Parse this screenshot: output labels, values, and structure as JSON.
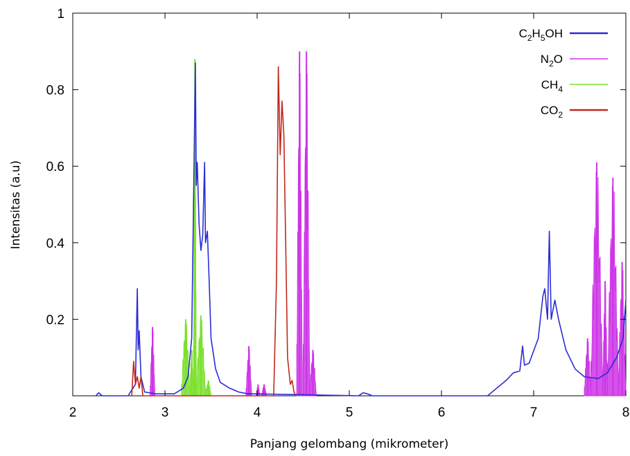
{
  "chart_data": {
    "type": "line",
    "xlabel": "Panjang gelombang (mikrometer)",
    "ylabel": "Intensitas (a.u)",
    "xlim": [
      2,
      8
    ],
    "ylim": [
      0,
      1
    ],
    "x_ticks": [
      "2",
      "3",
      "4",
      "5",
      "6",
      "7",
      "8"
    ],
    "y_ticks": [
      "0.2",
      "0.4",
      "0.6",
      "0.8",
      "1"
    ],
    "legend_position": "top-right",
    "grid": false,
    "series": [
      {
        "name": "C2H5OH",
        "legend": {
          "parts": [
            [
              "C",
              ""
            ],
            [
              "2",
              "sub"
            ],
            [
              "H",
              ""
            ],
            [
              "5",
              "sub"
            ],
            [
              "OH",
              ""
            ]
          ]
        },
        "color": "#2b2bd6",
        "style": "line",
        "points": [
          [
            2.25,
            0
          ],
          [
            2.28,
            0.008
          ],
          [
            2.32,
            0
          ],
          [
            2.6,
            0
          ],
          [
            2.68,
            0.03
          ],
          [
            2.7,
            0.28
          ],
          [
            2.71,
            0.12
          ],
          [
            2.72,
            0.17
          ],
          [
            2.74,
            0.05
          ],
          [
            2.78,
            0.01
          ],
          [
            2.9,
            0.005
          ],
          [
            3.1,
            0.005
          ],
          [
            3.2,
            0.02
          ],
          [
            3.25,
            0.05
          ],
          [
            3.29,
            0.15
          ],
          [
            3.31,
            0.5
          ],
          [
            3.33,
            0.87
          ],
          [
            3.34,
            0.55
          ],
          [
            3.35,
            0.61
          ],
          [
            3.37,
            0.45
          ],
          [
            3.39,
            0.38
          ],
          [
            3.41,
            0.42
          ],
          [
            3.43,
            0.61
          ],
          [
            3.44,
            0.4
          ],
          [
            3.46,
            0.43
          ],
          [
            3.48,
            0.3
          ],
          [
            3.5,
            0.15
          ],
          [
            3.55,
            0.07
          ],
          [
            3.6,
            0.035
          ],
          [
            3.7,
            0.02
          ],
          [
            3.8,
            0.01
          ],
          [
            3.9,
            0.005
          ],
          [
            4.0,
            0.005
          ],
          [
            5.1,
            0
          ],
          [
            5.15,
            0.008
          ],
          [
            5.2,
            0.005
          ],
          [
            5.25,
            0
          ],
          [
            6.5,
            0
          ],
          [
            6.6,
            0.02
          ],
          [
            6.7,
            0.04
          ],
          [
            6.78,
            0.06
          ],
          [
            6.85,
            0.065
          ],
          [
            6.88,
            0.13
          ],
          [
            6.9,
            0.08
          ],
          [
            6.95,
            0.085
          ],
          [
            7.05,
            0.15
          ],
          [
            7.1,
            0.26
          ],
          [
            7.12,
            0.28
          ],
          [
            7.15,
            0.2
          ],
          [
            7.17,
            0.43
          ],
          [
            7.19,
            0.2
          ],
          [
            7.23,
            0.25
          ],
          [
            7.27,
            0.2
          ],
          [
            7.35,
            0.12
          ],
          [
            7.45,
            0.07
          ],
          [
            7.55,
            0.05
          ],
          [
            7.7,
            0.045
          ],
          [
            7.8,
            0.06
          ],
          [
            7.9,
            0.1
          ],
          [
            7.97,
            0.15
          ],
          [
            8.0,
            0.25
          ]
        ]
      },
      {
        "name": "N2O",
        "legend": {
          "parts": [
            [
              "N",
              ""
            ],
            [
              "2",
              "sub"
            ],
            [
              "O",
              ""
            ]
          ]
        },
        "color": "#cc33e6",
        "style": "filled",
        "bands": [
          [
            2.84,
            2.89,
            0.18
          ],
          [
            3.88,
            3.94,
            0.13
          ],
          [
            3.99,
            4.03,
            0.03
          ],
          [
            4.05,
            4.1,
            0.03
          ],
          [
            4.43,
            4.49,
            0.9
          ],
          [
            4.5,
            4.57,
            0.9
          ],
          [
            4.57,
            4.64,
            0.12
          ],
          [
            7.55,
            7.62,
            0.15
          ],
          [
            7.62,
            7.75,
            0.61
          ],
          [
            7.75,
            7.8,
            0.3
          ],
          [
            7.8,
            7.92,
            0.57
          ],
          [
            7.92,
            8.0,
            0.35
          ]
        ]
      },
      {
        "name": "CH4",
        "legend": {
          "parts": [
            [
              "CH",
              ""
            ],
            [
              "4",
              "sub"
            ]
          ]
        },
        "color": "#7be02b",
        "style": "filled",
        "bands": [
          [
            3.18,
            3.27,
            0.2
          ],
          [
            3.27,
            3.31,
            0.12
          ],
          [
            3.31,
            3.34,
            0.88
          ],
          [
            3.34,
            3.44,
            0.21
          ],
          [
            3.44,
            3.5,
            0.04
          ]
        ]
      },
      {
        "name": "CO2",
        "legend": {
          "parts": [
            [
              "CO",
              ""
            ],
            [
              "2",
              "sub"
            ]
          ]
        },
        "color": "#c0281c",
        "style": "line",
        "points": [
          [
            2.64,
            0
          ],
          [
            2.66,
            0.09
          ],
          [
            2.68,
            0.03
          ],
          [
            2.7,
            0.05
          ],
          [
            2.72,
            0.02
          ],
          [
            2.74,
            0.05
          ],
          [
            2.76,
            0
          ],
          [
            4.18,
            0
          ],
          [
            4.21,
            0.3
          ],
          [
            4.23,
            0.86
          ],
          [
            4.25,
            0.63
          ],
          [
            4.27,
            0.77
          ],
          [
            4.29,
            0.68
          ],
          [
            4.31,
            0.4
          ],
          [
            4.33,
            0.1
          ],
          [
            4.36,
            0.03
          ],
          [
            4.38,
            0.04
          ],
          [
            4.4,
            0.01
          ],
          [
            4.42,
            0
          ]
        ]
      }
    ]
  }
}
